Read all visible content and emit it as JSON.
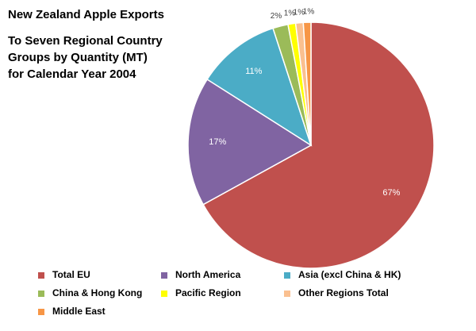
{
  "chart_data": {
    "type": "pie",
    "title": "New Zealand  Apple Exports",
    "subtitle": "To Seven Regional  Country\nGroups by Quantity (MT)\nfor Calendar Year 2004",
    "slices": [
      {
        "name": "Total EU",
        "value": 67,
        "label": "67%",
        "color": "#c0504d"
      },
      {
        "name": "North America",
        "value": 17,
        "label": "17%",
        "color": "#8064a2"
      },
      {
        "name": "Asia (excl China & HK)",
        "value": 11,
        "label": "11%",
        "color": "#4bacc6"
      },
      {
        "name": "China & Hong Kong",
        "value": 2,
        "label": "2%",
        "color": "#9bbb59"
      },
      {
        "name": "Pacific Region",
        "value": 1,
        "label": "1%",
        "color": "#ffff00"
      },
      {
        "name": "Other Regions Total",
        "value": 1,
        "label": "1%",
        "color": "#fac090"
      },
      {
        "name": "Middle East",
        "value": 1,
        "label": "1%",
        "color": "#f79646"
      }
    ],
    "legend_position": "bottom"
  }
}
